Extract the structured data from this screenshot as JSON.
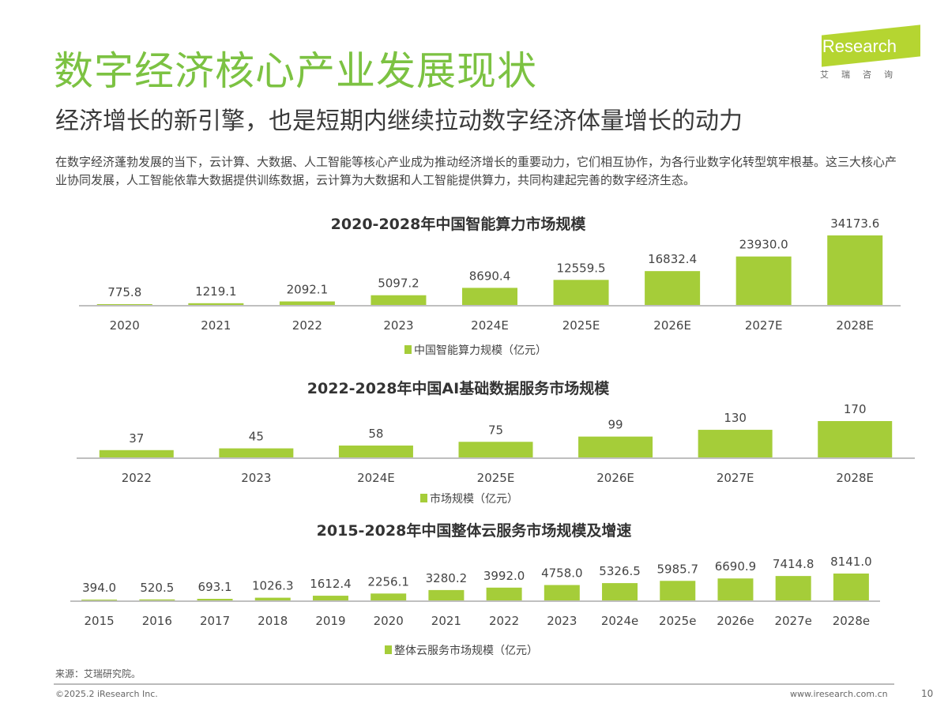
{
  "header": {
    "title": "数字经济核心产业发展现状",
    "subtitle": "经济增长的新引擎，也是短期内继续拉动数字经济体量增长的动力",
    "intro": "在数字经济蓬勃发展的当下，云计算、大数据、人工智能等核心产业成为推动经济增长的重要动力，它们相互协作，为各行业数字化转型筑牢根基。这三大核心产业协同发展，人工智能依靠大数据提供训练数据，云计算为大数据和人工智能提供算力，共同构建起完善的数字经济生态。"
  },
  "logo": {
    "text": "iResearch",
    "cn": "艾瑞咨询"
  },
  "colors": {
    "title": "#7cc242",
    "bar": "#a5cd39",
    "axis": "#bfbfbf"
  },
  "chart_data": [
    {
      "type": "bar",
      "title": "2020-2028年中国智能算力市场规模",
      "categories": [
        "2020",
        "2021",
        "2022",
        "2023",
        "2024E",
        "2025E",
        "2026E",
        "2027E",
        "2028E"
      ],
      "series": [
        {
          "name": "中国智能算力规模（亿元）",
          "values": [
            775.8,
            1219.1,
            2092.1,
            5097.2,
            8690.4,
            12559.5,
            16832.4,
            23930.0,
            34173.6
          ]
        }
      ],
      "labels": [
        "775.8",
        "1219.1",
        "2092.1",
        "5097.2",
        "8690.4",
        "12559.5",
        "16832.4",
        "23930.0",
        "34173.6"
      ],
      "legend": "bottom"
    },
    {
      "type": "bar",
      "title": "2022-2028年中国AI基础数据服务市场规模",
      "categories": [
        "2022",
        "2023",
        "2024E",
        "2025E",
        "2026E",
        "2027E",
        "2028E"
      ],
      "series": [
        {
          "name": "市场规模（亿元）",
          "values": [
            37,
            45,
            58,
            75,
            99,
            130,
            170
          ]
        }
      ],
      "labels": [
        "37",
        "45",
        "58",
        "75",
        "99",
        "130",
        "170"
      ],
      "legend": "bottom"
    },
    {
      "type": "bar",
      "title": "2015-2028年中国整体云服务市场规模及增速",
      "categories": [
        "2015",
        "2016",
        "2017",
        "2018",
        "2019",
        "2020",
        "2021",
        "2022",
        "2023",
        "2024e",
        "2025e",
        "2026e",
        "2027e",
        "2028e"
      ],
      "series": [
        {
          "name": "整体云服务市场规模（亿元）",
          "values": [
            394.0,
            520.5,
            693.1,
            1026.3,
            1612.4,
            2256.1,
            3280.2,
            3992.0,
            4758.0,
            5326.5,
            5985.7,
            6690.9,
            7414.8,
            8141.0
          ]
        }
      ],
      "labels": [
        "394.0",
        "520.5",
        "693.1",
        "1026.3",
        "1612.4",
        "2256.1",
        "3280.2",
        "3992.0",
        "4758.0",
        "5326.5",
        "5985.7",
        "6690.9",
        "7414.8",
        "8141.0"
      ],
      "legend": "bottom"
    }
  ],
  "footer": {
    "source": "来源：艾瑞研究院。",
    "copyright": "©2025.2 iResearch Inc.",
    "site": "www.iresearch.com.cn",
    "page": "10"
  }
}
